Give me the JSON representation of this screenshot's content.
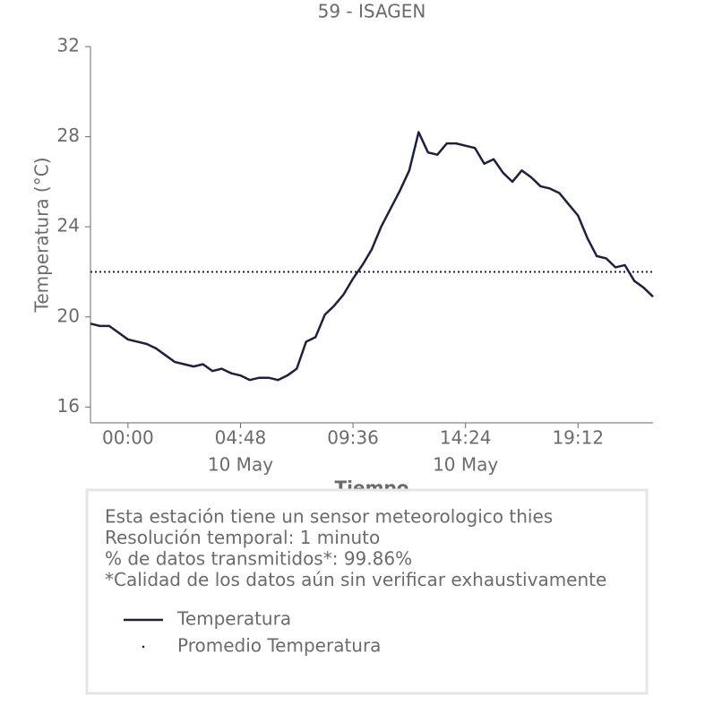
{
  "chart_data": {
    "type": "line",
    "title": "59 - ISAGEN",
    "y_label": "Temperatura (°C)",
    "x_label": "Tiempo",
    "x": [
      -1.6,
      -1.2,
      -0.8,
      -0.4,
      0,
      0.4,
      0.8,
      1.2,
      1.6,
      2.0,
      2.4,
      2.8,
      3.2,
      3.6,
      4.0,
      4.4,
      4.8,
      5.2,
      5.6,
      6.0,
      6.4,
      6.8,
      7.2,
      7.6,
      8.0,
      8.4,
      8.8,
      9.2,
      9.6,
      10.0,
      10.4,
      10.8,
      11.2,
      11.6,
      12.0,
      12.4,
      12.8,
      13.2,
      13.6,
      14.0,
      14.4,
      14.8,
      15.2,
      15.6,
      16.0,
      16.4,
      16.8,
      17.2,
      17.6,
      18.0,
      18.4,
      18.8,
      19.2,
      19.6,
      20.0,
      20.4,
      20.8,
      21.2,
      21.6,
      22.0,
      22.4
    ],
    "series": [
      {
        "name": "Temperatura",
        "color": "#1f2041",
        "values": [
          19.7,
          19.6,
          19.6,
          19.3,
          19.0,
          18.9,
          18.8,
          18.6,
          18.3,
          18.0,
          17.9,
          17.8,
          17.9,
          17.6,
          17.7,
          17.5,
          17.4,
          17.2,
          17.3,
          17.3,
          17.2,
          17.4,
          17.7,
          18.9,
          19.1,
          20.1,
          20.5,
          21.0,
          21.7,
          22.3,
          23.0,
          24.0,
          24.8,
          25.6,
          26.5,
          28.2,
          27.3,
          27.2,
          27.7,
          27.7,
          27.6,
          27.5,
          26.8,
          27.0,
          26.4,
          26.0,
          26.5,
          26.2,
          25.8,
          25.7,
          25.5,
          25.0,
          24.5,
          23.5,
          22.7,
          22.6,
          22.2,
          22.3,
          21.6,
          21.3,
          20.9
        ]
      }
    ],
    "reference_lines": [
      {
        "name": "Promedio Temperatura",
        "value": 22.0,
        "color": "#1f2041",
        "style": "dotted"
      }
    ],
    "xlim": [
      -1.6,
      22.4
    ],
    "xticks": [
      {
        "value": 0,
        "label": "00:00"
      },
      {
        "value": 4.8,
        "label": "04:48"
      },
      {
        "value": 9.6,
        "label": "09:36"
      },
      {
        "value": 14.4,
        "label": "14:24"
      },
      {
        "value": 19.2,
        "label": "19:12"
      }
    ],
    "date_labels": [
      {
        "value": 4.8,
        "label": "10 May"
      },
      {
        "value": 14.4,
        "label": "10 May"
      }
    ],
    "ylim": [
      15.3,
      32
    ],
    "yticks": [
      16,
      20,
      24,
      28,
      32
    ],
    "grid": false
  },
  "info_box": {
    "lines": [
      "Esta estación tiene un sensor meteorologico thies",
      "Resolución temporal: 1 minuto",
      "% de datos transmitidos*: 99.86%",
      "*Calidad de los datos aún sin verificar exhaustivamente"
    ]
  }
}
